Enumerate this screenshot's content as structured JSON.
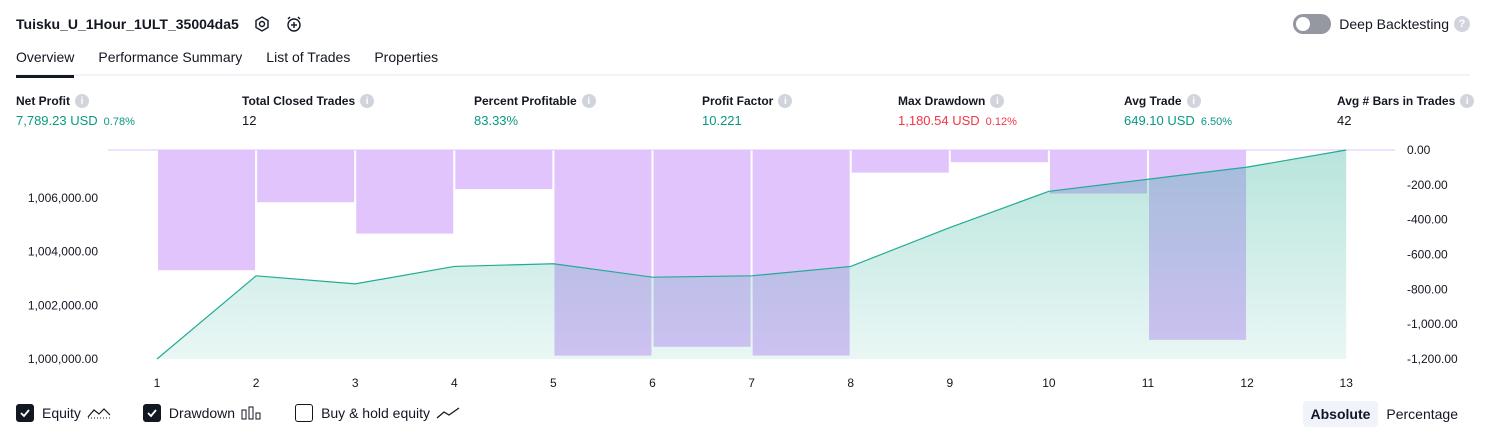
{
  "header": {
    "strategy_name": "Tuisku_U_1Hour_1ULT_35004da5",
    "deep_backtesting_label": "Deep Backtesting",
    "deep_backtesting_enabled": false
  },
  "tabs": [
    {
      "label": "Overview",
      "active": true
    },
    {
      "label": "Performance Summary",
      "active": false
    },
    {
      "label": "List of Trades",
      "active": false
    },
    {
      "label": "Properties",
      "active": false
    }
  ],
  "metrics": {
    "net_profit": {
      "label": "Net Profit",
      "value": "7,789.23 USD",
      "pct": "0.78%"
    },
    "total_closed_trades": {
      "label": "Total Closed Trades",
      "value": "12"
    },
    "percent_profitable": {
      "label": "Percent Profitable",
      "value": "83.33%"
    },
    "profit_factor": {
      "label": "Profit Factor",
      "value": "10.221"
    },
    "max_drawdown": {
      "label": "Max Drawdown",
      "value": "1,180.54 USD",
      "pct": "0.12%"
    },
    "avg_trade": {
      "label": "Avg Trade",
      "value": "649.10 USD",
      "pct": "6.50%"
    },
    "avg_bars": {
      "label": "Avg # Bars in Trades",
      "value": "42"
    }
  },
  "colors": {
    "positive": "#089981",
    "negative": "#f23645",
    "equity_line": "#22ab94",
    "drawdown_bar": "#e1c4fc"
  },
  "chart_data": {
    "type": "area",
    "x": [
      1,
      2,
      3,
      4,
      5,
      6,
      7,
      8,
      9,
      10,
      11,
      12,
      13
    ],
    "series": [
      {
        "name": "Equity",
        "type": "area",
        "axis": "left",
        "values": [
          1000000,
          1003100,
          1002800,
          1003450,
          1003550,
          1003050,
          1003100,
          1003450,
          1004900,
          1006250,
          1006700,
          1007150,
          1007789.23
        ]
      },
      {
        "name": "Drawdown",
        "type": "bar",
        "axis": "right",
        "values": [
          null,
          -690,
          -300,
          -480,
          -225,
          -1180.54,
          -1130,
          -1180,
          -130,
          -70,
          -250,
          -1090,
          null
        ]
      }
    ],
    "y_left": {
      "ticks": [
        1000000,
        1002000,
        1004000,
        1006000
      ],
      "tick_labels": [
        "1,000,000.00",
        "1,002,000.00",
        "1,004,000.00",
        "1,006,000.00"
      ],
      "range": [
        1000000,
        1007789.23
      ]
    },
    "y_right": {
      "ticks": [
        0,
        -200,
        -400,
        -600,
        -800,
        -1000,
        -1200
      ],
      "tick_labels": [
        "0.00",
        "-200.00",
        "-400.00",
        "-600.00",
        "-800.00",
        "-1,000.00",
        "-1,200.00"
      ],
      "range": [
        -1200,
        0
      ]
    },
    "x_tick_labels": [
      "1",
      "2",
      "3",
      "4",
      "5",
      "6",
      "7",
      "8",
      "9",
      "10",
      "11",
      "12",
      "13"
    ]
  },
  "legend": {
    "equity": {
      "label": "Equity",
      "checked": true
    },
    "drawdown": {
      "label": "Drawdown",
      "checked": true
    },
    "buy_hold": {
      "label": "Buy & hold equity",
      "checked": false
    }
  },
  "mode": {
    "absolute": "Absolute",
    "percentage": "Percentage",
    "selected": "absolute"
  }
}
